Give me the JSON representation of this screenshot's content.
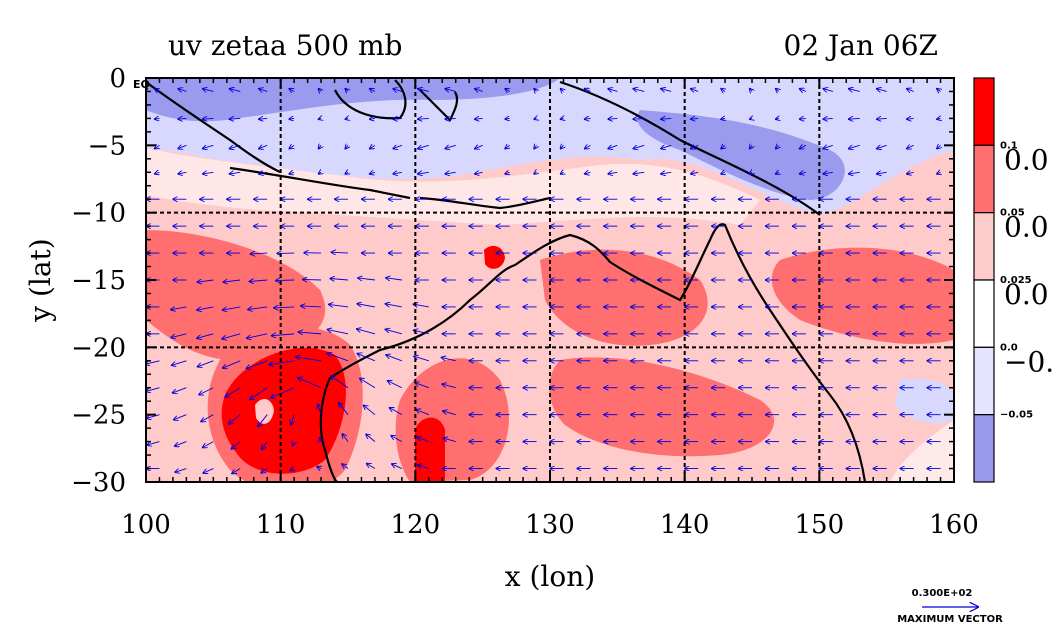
{
  "chart_data": {
    "type": "heatmap",
    "title_left": "uv zetaa 500 mb",
    "title_right": "02 Jan 06Z",
    "xlabel": "x (lon)",
    "ylabel": "y (lat)",
    "xlim": [
      100,
      160
    ],
    "ylim": [
      -30,
      0
    ],
    "x_ticks": [
      100,
      110,
      120,
      130,
      140,
      150,
      160
    ],
    "x_tick_labels": [
      "100",
      "110",
      "120",
      "130",
      "140",
      "150",
      "160"
    ],
    "y_ticks": [
      0,
      -5,
      -10,
      -15,
      -20,
      -25,
      -30
    ],
    "y_tick_labels": [
      "0",
      "−5",
      "−10",
      "−15",
      "−20",
      "−25",
      "−30"
    ],
    "y_top_suffix": "EQ",
    "gridlines": [
      -20,
      -10,
      110,
      120,
      130,
      140,
      150
    ],
    "colorbar": {
      "levels": [
        "0.1",
        "0.05",
        "0.025",
        "0.0",
        "−0.05"
      ],
      "right_labels": [
        "0.0",
        "0.0",
        "0.0",
        "−0."
      ],
      "colors": [
        "#ff0000",
        "#ff7070",
        "#ffcccc",
        "#ffffff",
        "#e4e4ff",
        "#9999ee"
      ]
    },
    "field_colors": {
      "strong_positive": "#ff0000",
      "positive": "#ff6f6f",
      "weak_positive": "#ffcaca",
      "near_zero": "#ffffff",
      "weak_negative": "#d8d8ff",
      "negative": "#9a9aee",
      "vectors": "#0000dd",
      "coast": "#000000"
    },
    "vector_key": {
      "value": "0.300E+02",
      "label": "MAXIMUM VECTOR"
    }
  }
}
